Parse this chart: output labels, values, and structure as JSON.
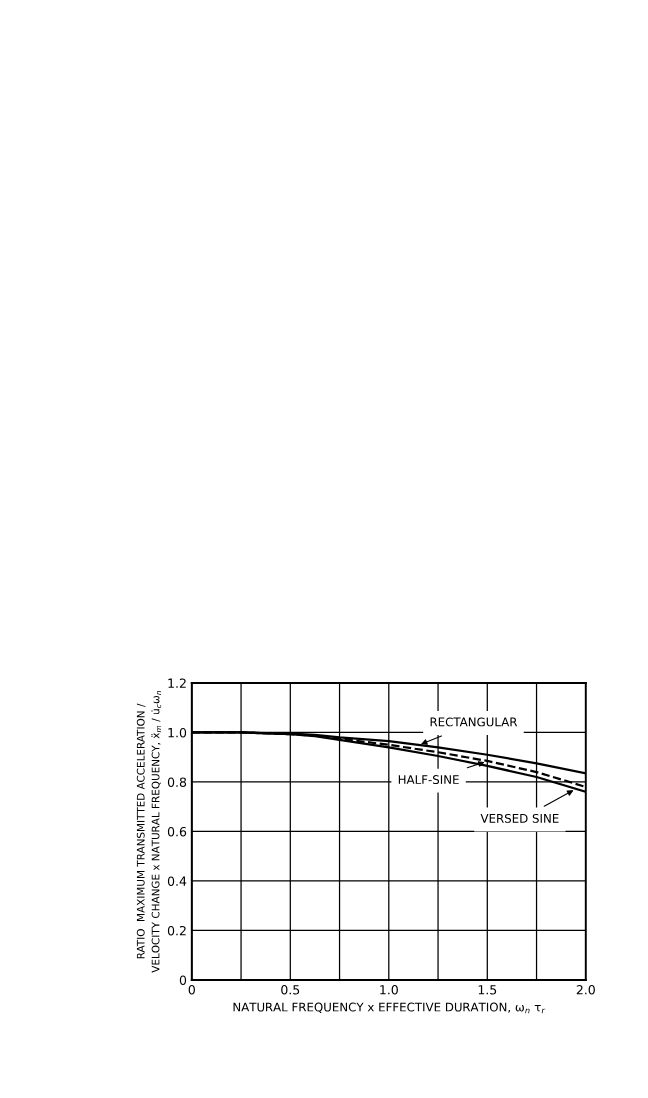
{
  "chart_data": {
    "type": "line",
    "xlabel": "NATURAL FREQUENCY x EFFECTIVE DURATION, ω$_{n}$ τ$_{r}$",
    "ylabel": "RATIO  MAXIMUM TRANSMITTED ACCELERATION /\nVELOCITY CHANGE x NATURAL FREQUENCY, ẍ$_{m}$ / u̇$_{c}$ω$_{n}$",
    "x": [
      0,
      0.25,
      0.5,
      0.625,
      0.75,
      1.0,
      1.25,
      1.5,
      1.75,
      2.0
    ],
    "series": [
      {
        "color": "#000000",
        "line_style": "solid",
        "values": [
          1.0,
          1.0,
          0.995,
          0.99,
          0.98,
          0.965,
          0.94,
          0.91,
          0.875,
          0.835
        ]
      },
      {
        "color": "#000000",
        "line_style": "dashed",
        "values": [
          1.0,
          1.0,
          0.993,
          0.987,
          0.975,
          0.95,
          0.92,
          0.885,
          0.84,
          0.78
        ]
      },
      {
        "color": "#000000",
        "line_style": "solid",
        "values": [
          1.0,
          1.0,
          0.993,
          0.985,
          0.97,
          0.94,
          0.905,
          0.865,
          0.82,
          0.76
        ]
      }
    ],
    "annotations": [
      {
        "text": "RECTANGULAR",
        "x": 1.15,
        "y": 0.948
      },
      {
        "text": "HALF-SINE",
        "x": 1.5,
        "y": 0.884
      },
      {
        "text": "VERSED SINE",
        "x": 1.95,
        "y": 0.772
      }
    ],
    "xlim": [
      0,
      2.0
    ],
    "ylim": [
      0,
      1.2
    ],
    "xticks": [
      0,
      {
        "value": 0.25,
        "label": null
      },
      0.5,
      {
        "value": 0.75,
        "label": null
      },
      {
        "value": 1.0,
        "label": "1.0"
      },
      {
        "value": 1.25,
        "label": null
      },
      1.5,
      {
        "value": 1.75,
        "label": null
      },
      {
        "value": 2.0,
        "label": "2.0"
      }
    ],
    "yticks": [
      0,
      0.2,
      0.4,
      0.6,
      0.8,
      {
        "value": 1.0,
        "label": "1.0"
      },
      1.2
    ],
    "grid": true,
    "legend": false,
    "marker": "none"
  }
}
